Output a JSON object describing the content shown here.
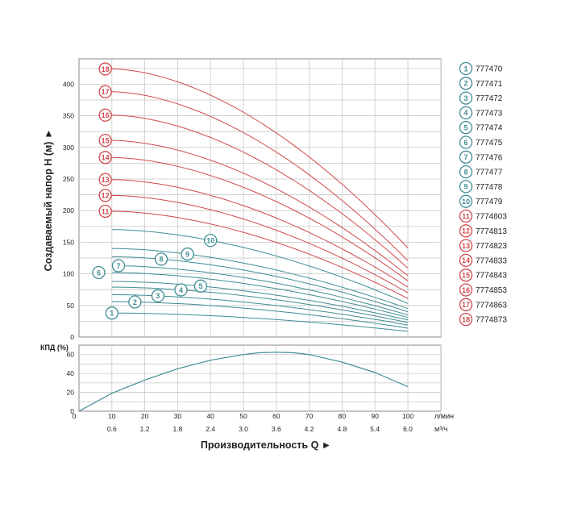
{
  "chart_data": {
    "type": "line",
    "head_chart": {
      "ylabel": "Создаваемый напор Н (м) ►",
      "ylim": [
        0,
        440
      ],
      "yticks": [
        0,
        50,
        100,
        150,
        200,
        250,
        300,
        350,
        400
      ],
      "xlim": [
        0,
        100
      ],
      "grid": true
    },
    "efficiency_chart": {
      "ylabel": "КПД (%)",
      "ylim": [
        0,
        70
      ],
      "yticks": [
        0,
        20,
        40,
        60
      ],
      "series": [
        {
          "x": [
            0,
            10,
            20,
            30,
            40,
            50,
            55,
            60,
            65,
            70,
            80,
            90,
            100
          ],
          "y": [
            0,
            19,
            33,
            45,
            54,
            60,
            62,
            62.5,
            62,
            60,
            52,
            41,
            26
          ]
        }
      ]
    },
    "x_axis": {
      "xlabel": "Производительность Q ►",
      "lpm_ticks": [
        0,
        10,
        20,
        30,
        40,
        50,
        60,
        70,
        80,
        90,
        100
      ],
      "lpm_unit": "л/мин",
      "m3h_ticks": [
        "0.6",
        "1.2",
        "1.8",
        "2.4",
        "3.0",
        "3.6",
        "4.2",
        "4.8",
        "5.4",
        "6.0"
      ],
      "m3h_unit": "м³/ч"
    },
    "series": [
      {
        "id": "1",
        "name": "777470",
        "group": "blue",
        "shutoff": 38,
        "end": 9,
        "label_x": 10
      },
      {
        "id": "2",
        "name": "777471",
        "group": "blue",
        "shutoff": 56,
        "end": 14,
        "label_x": 17
      },
      {
        "id": "3",
        "name": "777472",
        "group": "blue",
        "shutoff": 67,
        "end": 19,
        "label_x": 24
      },
      {
        "id": "4",
        "name": "777473",
        "group": "blue",
        "shutoff": 79,
        "end": 23,
        "label_x": 31
      },
      {
        "id": "5",
        "name": "777474",
        "group": "blue",
        "shutoff": 88,
        "end": 27,
        "label_x": 37
      },
      {
        "id": "6",
        "name": "777475",
        "group": "blue",
        "shutoff": 102,
        "end": 31,
        "label_x": 6
      },
      {
        "id": "7",
        "name": "777476",
        "group": "blue",
        "shutoff": 113,
        "end": 35,
        "label_x": 12
      },
      {
        "id": "8",
        "name": "777477",
        "group": "blue",
        "shutoff": 127,
        "end": 40,
        "label_x": 25
      },
      {
        "id": "9",
        "name": "777478",
        "group": "blue",
        "shutoff": 140,
        "end": 45,
        "label_x": 33
      },
      {
        "id": "10",
        "name": "777479",
        "group": "blue",
        "shutoff": 170,
        "end": 53,
        "label_x": 40
      },
      {
        "id": "11",
        "name": "7774803",
        "group": "red",
        "shutoff": 199,
        "end": 61,
        "label_x": 8
      },
      {
        "id": "12",
        "name": "7774813",
        "group": "red",
        "shutoff": 224,
        "end": 70,
        "label_x": 8
      },
      {
        "id": "13",
        "name": "7774823",
        "group": "red",
        "shutoff": 249,
        "end": 79,
        "label_x": 8
      },
      {
        "id": "14",
        "name": "7774833",
        "group": "red",
        "shutoff": 284,
        "end": 89,
        "label_x": 8
      },
      {
        "id": "15",
        "name": "7774843",
        "group": "red",
        "shutoff": 311,
        "end": 97,
        "label_x": 8
      },
      {
        "id": "16",
        "name": "7774853",
        "group": "red",
        "shutoff": 351,
        "end": 109,
        "label_x": 8
      },
      {
        "id": "17",
        "name": "7774863",
        "group": "red",
        "shutoff": 388,
        "end": 121,
        "label_x": 8
      },
      {
        "id": "18",
        "name": "7774873",
        "group": "red",
        "shutoff": 424,
        "end": 141,
        "label_x": 8
      }
    ],
    "colors": {
      "blue": "#3f8d95",
      "red": "#d1494c",
      "grid": "#c8c8c8",
      "frame": "#8a8a8a"
    },
    "legend_placement": "right"
  }
}
